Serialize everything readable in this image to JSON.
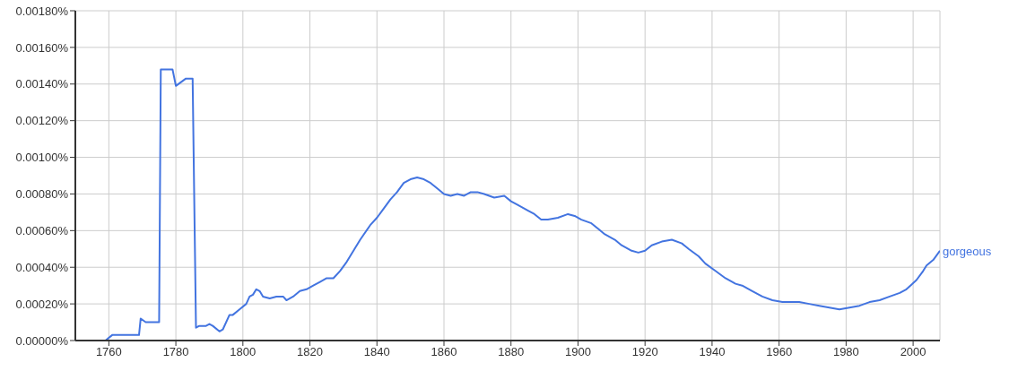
{
  "chart_data": {
    "type": "line",
    "x": [
      1750,
      1759,
      1761,
      1769,
      1769.5,
      1771,
      1775,
      1775.5,
      1779,
      1780,
      1783,
      1785,
      1786,
      1787,
      1789,
      1790,
      1791,
      1793,
      1794,
      1796,
      1797,
      1799,
      1801,
      1802,
      1803,
      1804,
      1805,
      1806,
      1808,
      1810,
      1812,
      1813,
      1815,
      1817,
      1819,
      1821,
      1823,
      1825,
      1827,
      1829,
      1831,
      1833,
      1835,
      1838,
      1840,
      1842,
      1844,
      1846,
      1848,
      1850,
      1852,
      1854,
      1856,
      1858,
      1860,
      1862,
      1864,
      1866,
      1868,
      1870,
      1872,
      1875,
      1878,
      1880,
      1882,
      1885,
      1887,
      1889,
      1891,
      1894,
      1897,
      1899,
      1901,
      1904,
      1906,
      1908,
      1911,
      1913,
      1916,
      1918,
      1920,
      1922,
      1925,
      1928,
      1931,
      1933,
      1936,
      1938,
      1941,
      1944,
      1947,
      1949,
      1952,
      1955,
      1958,
      1961,
      1963,
      1966,
      1969,
      1972,
      1975,
      1978,
      1981,
      1984,
      1987,
      1990,
      1993,
      1996,
      1998,
      2001,
      2003,
      2004,
      2006,
      2008
    ],
    "series": [
      {
        "name": "gorgeous",
        "color": "#4374e0",
        "values": [
          0,
          0,
          3e-05,
          3e-05,
          0.00012,
          0.0001,
          0.0001,
          0.00148,
          0.00148,
          0.00139,
          0.00143,
          0.00143,
          7e-05,
          8e-05,
          8e-05,
          9e-05,
          8e-05,
          5e-05,
          6e-05,
          0.00014,
          0.00014,
          0.00017,
          0.0002,
          0.00024,
          0.00025,
          0.00028,
          0.00027,
          0.00024,
          0.00023,
          0.00024,
          0.00024,
          0.00022,
          0.00024,
          0.00027,
          0.00028,
          0.0003,
          0.00032,
          0.00034,
          0.00034,
          0.00038,
          0.00043,
          0.00049,
          0.00055,
          0.00063,
          0.00067,
          0.00072,
          0.00077,
          0.00081,
          0.00086,
          0.00088,
          0.00089,
          0.00088,
          0.00086,
          0.00083,
          0.0008,
          0.00079,
          0.0008,
          0.00079,
          0.00081,
          0.00081,
          0.0008,
          0.00078,
          0.00079,
          0.00076,
          0.00074,
          0.00071,
          0.00069,
          0.00066,
          0.00066,
          0.00067,
          0.00069,
          0.00068,
          0.00066,
          0.00064,
          0.00061,
          0.00058,
          0.00055,
          0.00052,
          0.00049,
          0.00048,
          0.00049,
          0.00052,
          0.00054,
          0.00055,
          0.00053,
          0.0005,
          0.00046,
          0.00042,
          0.00038,
          0.00034,
          0.00031,
          0.0003,
          0.00027,
          0.00024,
          0.00022,
          0.00021,
          0.00021,
          0.00021,
          0.0002,
          0.00019,
          0.00018,
          0.00017,
          0.00018,
          0.00019,
          0.00021,
          0.00022,
          0.00024,
          0.00026,
          0.00028,
          0.00033,
          0.00038,
          0.00041,
          0.00044,
          0.00049
        ]
      }
    ],
    "xlim": [
      1750,
      2008
    ],
    "xticks": [
      1760,
      1780,
      1800,
      1820,
      1840,
      1860,
      1880,
      1900,
      1920,
      1940,
      1960,
      1980,
      2000
    ],
    "ylim": [
      0,
      0.0018
    ],
    "yticks": [
      {
        "value": 0,
        "label": "0.00000%"
      },
      {
        "value": 0.0002,
        "label": "0.00020%"
      },
      {
        "value": 0.0004,
        "label": "0.00040%"
      },
      {
        "value": 0.0006,
        "label": "0.00060%"
      },
      {
        "value": 0.0008,
        "label": "0.00080%"
      },
      {
        "value": 0.001,
        "label": "0.00100%"
      },
      {
        "value": 0.0012,
        "label": "0.00120%"
      },
      {
        "value": 0.0014,
        "label": "0.00140%"
      },
      {
        "value": 0.0016,
        "label": "0.00160%"
      },
      {
        "value": 0.0018,
        "label": "0.00180%"
      }
    ],
    "grid": true,
    "legend": false,
    "marker": "none",
    "line_style": "solid"
  }
}
